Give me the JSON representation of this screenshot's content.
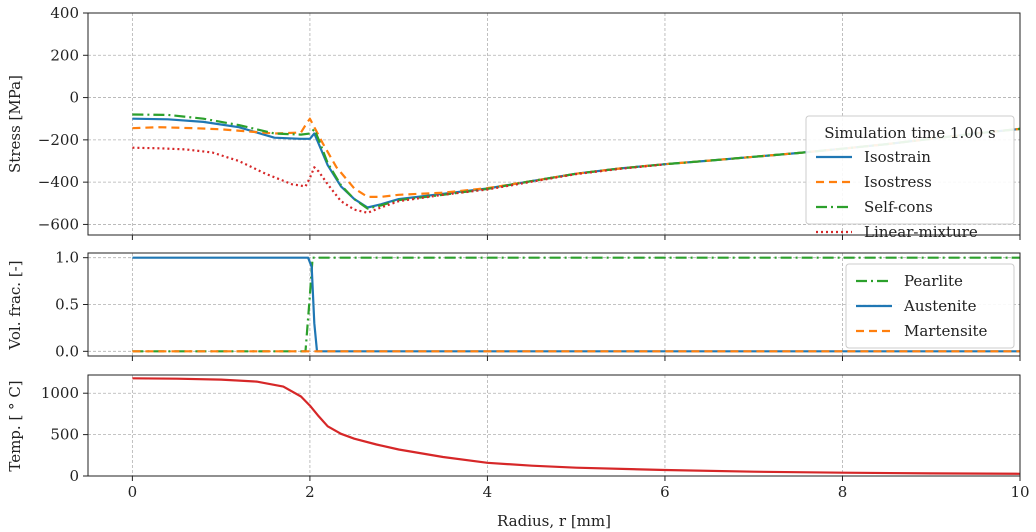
{
  "x_axis": {
    "label": "Radius, r [mm]",
    "lim": [
      -0.5,
      10
    ],
    "ticks": [
      0,
      2,
      4,
      6,
      8,
      10
    ]
  },
  "chart_data": [
    {
      "type": "line",
      "ylabel": "Stress [MPa]",
      "xlabel": "",
      "xlim": [
        -0.5,
        10
      ],
      "ylim": [
        -650,
        400
      ],
      "yticks": [
        400,
        200,
        0,
        -200,
        -400,
        -600
      ],
      "grid": true,
      "legend": {
        "title": "Simulation time 1.00 s",
        "position": "right"
      },
      "series": [
        {
          "name": "Isostrain",
          "color": "#1f77b4",
          "dash": "solid",
          "x": [
            0,
            0.4,
            0.8,
            1.2,
            1.6,
            1.9,
            2.0,
            2.05,
            2.1,
            2.2,
            2.35,
            2.5,
            2.65,
            2.8,
            3.0,
            3.5,
            4.0,
            4.5,
            5.0,
            5.5,
            6.0,
            6.5,
            7.0,
            7.5,
            8.0,
            8.5,
            9.0,
            9.5,
            10.0
          ],
          "y": [
            -100,
            -103,
            -115,
            -140,
            -190,
            -195,
            -195,
            -170,
            -220,
            -320,
            -420,
            -480,
            -520,
            -505,
            -480,
            -455,
            -430,
            -395,
            -360,
            -335,
            -315,
            -298,
            -280,
            -262,
            -242,
            -220,
            -195,
            -170,
            -148
          ]
        },
        {
          "name": "Isostress",
          "color": "#ff7f0e",
          "dash": "8,5",
          "x": [
            0,
            0.3,
            0.7,
            1.0,
            1.3,
            1.6,
            1.9,
            1.95,
            2.0,
            2.05,
            2.15,
            2.3,
            2.5,
            2.65,
            2.8,
            3.0,
            3.5,
            4.0,
            4.5,
            5.0,
            5.5,
            6.0,
            6.5,
            7.0,
            7.5,
            8.0,
            8.5,
            9.0,
            9.5,
            10.0
          ],
          "y": [
            -145,
            -140,
            -145,
            -150,
            -160,
            -170,
            -165,
            -130,
            -100,
            -140,
            -220,
            -330,
            -430,
            -470,
            -470,
            -460,
            -450,
            -428,
            -395,
            -360,
            -335,
            -315,
            -298,
            -280,
            -262,
            -242,
            -220,
            -195,
            -170,
            -148
          ]
        },
        {
          "name": "Self-cons",
          "color": "#2ca02c",
          "dash": "11,4,2,4",
          "x": [
            0,
            0.4,
            0.8,
            1.2,
            1.6,
            1.9,
            2.0,
            2.05,
            2.1,
            2.2,
            2.35,
            2.5,
            2.65,
            2.8,
            3.0,
            3.5,
            4.0,
            4.5,
            5.0,
            5.5,
            6.0,
            6.5,
            7.0,
            7.5,
            8.0,
            8.5,
            9.0,
            9.5,
            10.0
          ],
          "y": [
            -80,
            -82,
            -100,
            -130,
            -170,
            -175,
            -170,
            -150,
            -200,
            -310,
            -415,
            -480,
            -525,
            -510,
            -485,
            -460,
            -432,
            -395,
            -360,
            -335,
            -315,
            -298,
            -280,
            -262,
            -242,
            -220,
            -195,
            -170,
            -148
          ]
        },
        {
          "name": "Linear-mixture",
          "color": "#d62728",
          "dash": "2,3",
          "x": [
            0,
            0.3,
            0.6,
            0.9,
            1.2,
            1.5,
            1.8,
            1.95,
            2.0,
            2.05,
            2.1,
            2.2,
            2.35,
            2.5,
            2.65,
            2.8,
            3.0,
            3.5,
            4.0,
            4.5,
            5.0,
            5.5,
            6.0
          ],
          "y": [
            -237,
            -240,
            -245,
            -260,
            -300,
            -360,
            -410,
            -420,
            -380,
            -330,
            -350,
            -410,
            -490,
            -530,
            -545,
            -520,
            -490,
            -460,
            -435,
            -398,
            -362,
            -337,
            -316
          ]
        }
      ]
    },
    {
      "type": "line",
      "ylabel": "Vol. frac. [-]",
      "xlabel": "",
      "xlim": [
        -0.5,
        10
      ],
      "ylim": [
        -0.05,
        1.05
      ],
      "yticks": [
        1.0,
        0.5,
        0.0
      ],
      "ytick_labels": [
        "1.0",
        "0.5",
        "0.0"
      ],
      "grid": true,
      "legend": {
        "position": "right"
      },
      "series": [
        {
          "name": "Pearlite",
          "color": "#2ca02c",
          "dash": "11,4,2,4",
          "x": [
            0,
            1.95,
            2.0,
            2.03,
            2.06,
            10.0
          ],
          "y": [
            0,
            0,
            0.6,
            1.0,
            1.0,
            1.0
          ]
        },
        {
          "name": "Austenite",
          "color": "#1f77b4",
          "dash": "solid",
          "x": [
            0,
            1.98,
            2.02,
            2.05,
            2.08,
            10.0
          ],
          "y": [
            1.0,
            1.0,
            0.9,
            0.3,
            0.0,
            0.0
          ]
        },
        {
          "name": "Martensite",
          "color": "#ff7f0e",
          "dash": "8,5",
          "x": [
            0,
            10.0
          ],
          "y": [
            0,
            0
          ]
        }
      ]
    },
    {
      "type": "line",
      "ylabel": "Temp. [ ° C]",
      "xlabel": "Radius, r [mm]",
      "xlim": [
        -0.5,
        10
      ],
      "ylim": [
        0,
        1220
      ],
      "yticks": [
        1000,
        500,
        0
      ],
      "grid": true,
      "series": [
        {
          "name": "",
          "color": "#d62728",
          "dash": "solid",
          "x": [
            0,
            0.5,
            1.0,
            1.4,
            1.7,
            1.9,
            2.0,
            2.1,
            2.2,
            2.35,
            2.5,
            2.75,
            3.0,
            3.5,
            4.0,
            4.5,
            5.0,
            6.0,
            7.0,
            8.0,
            9.0,
            10.0
          ],
          "y": [
            1180,
            1175,
            1165,
            1140,
            1080,
            960,
            850,
            720,
            600,
            510,
            450,
            380,
            320,
            230,
            160,
            125,
            100,
            72,
            52,
            40,
            32,
            27
          ]
        }
      ]
    }
  ]
}
